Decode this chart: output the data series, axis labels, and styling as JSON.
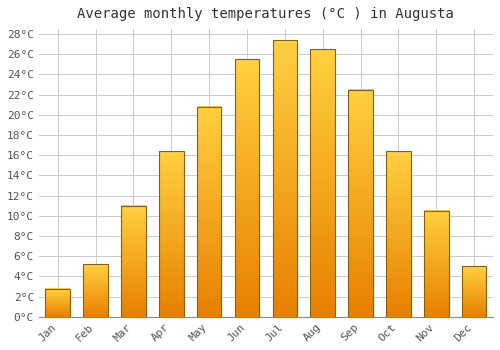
{
  "title": "Average monthly temperatures (°C ) in Augusta",
  "months": [
    "Jan",
    "Feb",
    "Mar",
    "Apr",
    "May",
    "Jun",
    "Jul",
    "Aug",
    "Sep",
    "Oct",
    "Nov",
    "Dec"
  ],
  "values": [
    2.8,
    5.2,
    11.0,
    16.4,
    20.8,
    25.5,
    27.4,
    26.5,
    22.5,
    16.4,
    10.5,
    5.0
  ],
  "bar_color": "#FFA500",
  "bar_edge_color": "#8B6000",
  "background_color": "#FFFFFF",
  "grid_color": "#CCCCCC",
  "text_color": "#555555",
  "ytick_step": 2,
  "ymin": 0,
  "ymax": 28,
  "title_fontsize": 10,
  "tick_fontsize": 8,
  "bar_width": 0.65
}
